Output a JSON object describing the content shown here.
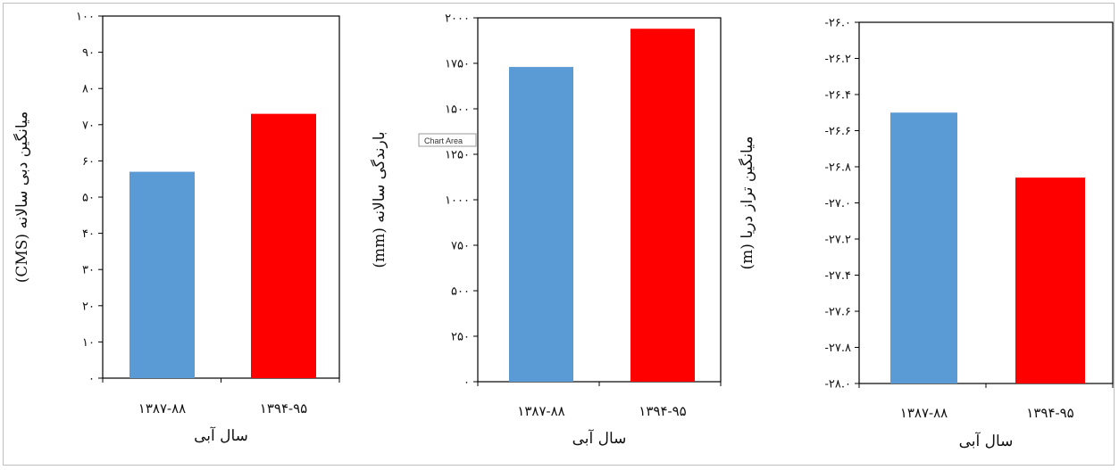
{
  "chart_data": [
    {
      "type": "bar",
      "categories": [
        "۱۳۸۷-۸۸",
        "۱۳۹۴-۹۵"
      ],
      "values": [
        57,
        73
      ],
      "colors": [
        "#5b9bd5",
        "#ff0000"
      ],
      "ylim": [
        0,
        100
      ],
      "yticks": [
        0,
        10,
        20,
        30,
        40,
        50,
        60,
        70,
        80,
        90,
        100
      ],
      "ytick_labels": [
        "۰",
        "۱۰",
        "۲۰",
        "۳۰",
        "۴۰",
        "۵۰",
        "۶۰",
        "۷۰",
        "۸۰",
        "۹۰",
        "۱۰۰"
      ],
      "ylabel": "میانگین دبی سالانه (CMS)",
      "xlabel": "سال آبی",
      "grid": false,
      "legend": "none"
    },
    {
      "type": "bar",
      "categories": [
        "۱۳۸۷-۸۸",
        "۱۳۹۴-۹۵"
      ],
      "values": [
        1730,
        1940
      ],
      "colors": [
        "#5b9bd5",
        "#ff0000"
      ],
      "ylim": [
        0,
        2000
      ],
      "yticks": [
        0,
        250,
        500,
        750,
        1000,
        1250,
        1500,
        1750,
        2000
      ],
      "ytick_labels": [
        "۰",
        "۲۵۰",
        "۵۰۰",
        "۷۵۰",
        "۱۰۰۰",
        "۱۲۵۰",
        "۱۵۰۰",
        "۱۷۵۰",
        "۲۰۰۰"
      ],
      "ylabel": "بارندگی سالانه (mm)",
      "xlabel": "سال آبی",
      "grid": false,
      "legend": "none",
      "tooltip": "Chart Area"
    },
    {
      "type": "bar",
      "categories": [
        "۱۳۸۷-۸۸",
        "۱۳۹۴-۹۵"
      ],
      "values": [
        -26.5,
        -26.86
      ],
      "colors": [
        "#5b9bd5",
        "#ff0000"
      ],
      "ylim": [
        -28.0,
        -26.0
      ],
      "yticks": [
        -28.0,
        -27.8,
        -27.6,
        -27.4,
        -27.2,
        -27.0,
        -26.8,
        -26.6,
        -26.4,
        -26.2,
        -26.0
      ],
      "ytick_labels": [
        "-۲۸.۰",
        "-۲۷.۸",
        "-۲۷.۶",
        "-۲۷.۴",
        "-۲۷.۲",
        "-۲۷.۰",
        "-۲۶.۸",
        "-۲۶.۶",
        "-۲۶.۴",
        "-۲۶.۲",
        "-۲۶.۰"
      ],
      "ylabel": "میانگین تراز دریا (m)",
      "xlabel": "سال آبی",
      "grid": false,
      "legend": "none"
    }
  ]
}
